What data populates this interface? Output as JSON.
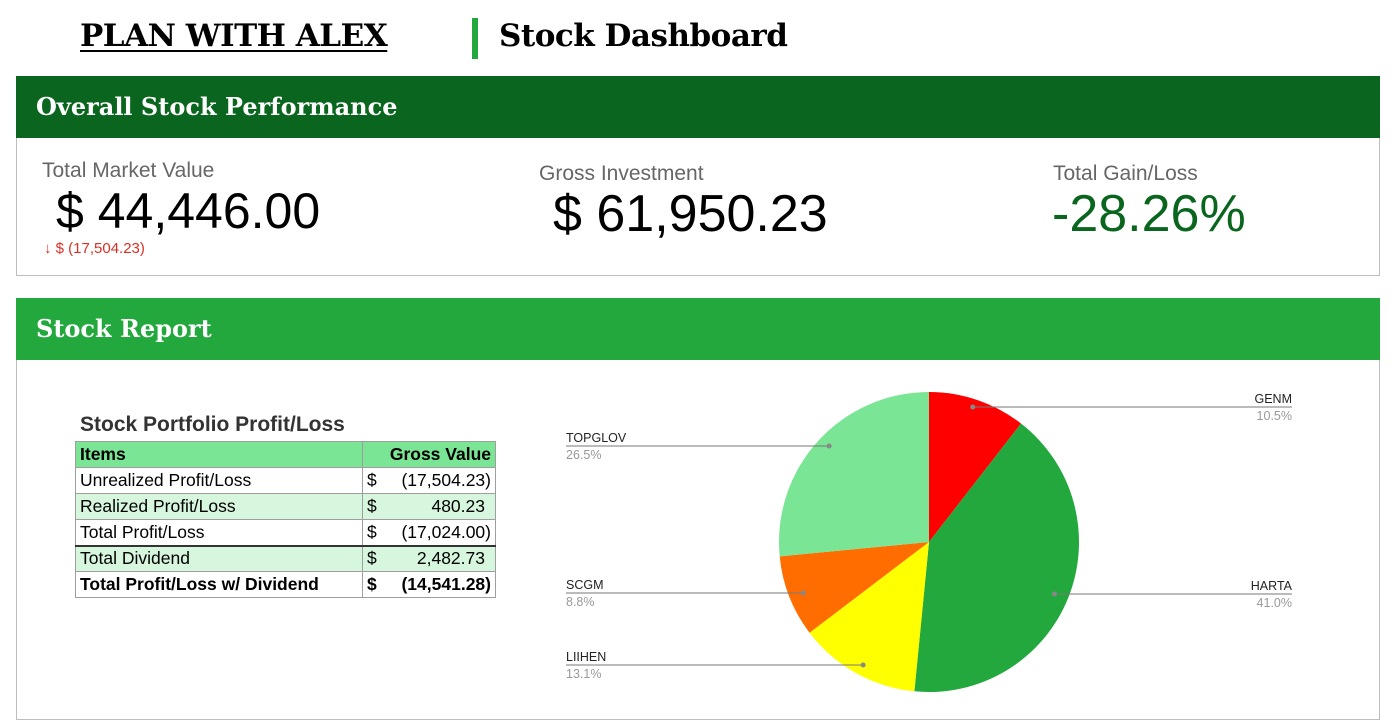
{
  "header": {
    "brand": "PLAN WITH ALEX",
    "title": "Stock Dashboard"
  },
  "performance": {
    "heading": "Overall Stock Performance",
    "market_value_label": "Total Market Value",
    "market_value": "$ 44,446.00",
    "market_value_delta": "↓ $ (17,504.23)",
    "gross_investment_label": "Gross Investment",
    "gross_investment": "$ 61,950.23",
    "gain_loss_label": "Total Gain/Loss",
    "gain_loss": "-28.26%"
  },
  "report": {
    "heading": "Stock Report",
    "table_title": "Stock Portfolio Profit/Loss",
    "columns": [
      "Items",
      "Gross Value"
    ],
    "rows": [
      {
        "item": "Unrealized Profit/Loss",
        "currency": "$",
        "value": "(17,504.23)"
      },
      {
        "item": "Realized Profit/Loss",
        "currency": "$",
        "value": "480.23"
      },
      {
        "item": "Total Profit/Loss",
        "currency": "$",
        "value": "(17,024.00)"
      },
      {
        "item": "Total Dividend",
        "currency": "$",
        "value": "2,482.73"
      },
      {
        "item": "Total Profit/Loss w/ Dividend",
        "currency": "$",
        "value": "(14,541.28)"
      }
    ]
  },
  "chart_data": {
    "type": "pie",
    "title": "",
    "slices": [
      {
        "label": "GENM",
        "value": 10.5,
        "pct": "10.5%",
        "color": "#ff0000"
      },
      {
        "label": "HARTA",
        "value": 41.0,
        "pct": "41.0%",
        "color": "#22a83d"
      },
      {
        "label": "LIIHEN",
        "value": 13.1,
        "pct": "13.1%",
        "color": "#ffff00"
      },
      {
        "label": "SCGM",
        "value": 8.8,
        "pct": "8.8%",
        "color": "#ff6d01"
      },
      {
        "label": "TOPGLOV",
        "value": 26.5,
        "pct": "26.5%",
        "color": "#7ae595"
      }
    ],
    "legend": "callout labels"
  }
}
